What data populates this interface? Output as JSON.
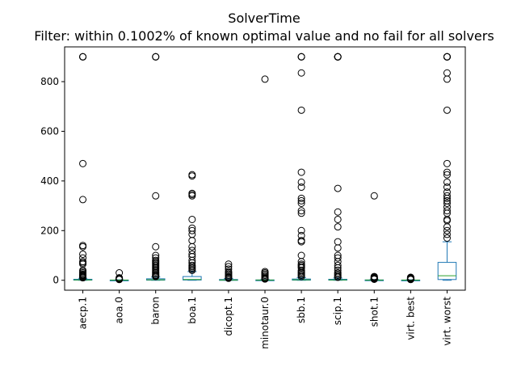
{
  "chart_data": {
    "type": "box",
    "title": "SolverTime",
    "subtitle": "Filter: within 0.1002% of known optimal value and no fail for all solvers",
    "xlabel": "",
    "ylabel": "",
    "ylim": [
      -40,
      940
    ],
    "yticks": [
      0,
      200,
      400,
      600,
      800
    ],
    "grid": false,
    "legend": "none",
    "colors": {
      "box": "#1f77b4",
      "median": "#2ca02c",
      "whisker": "#1f77b4",
      "outlier": "#000000"
    },
    "categories": [
      "aecp.1",
      "aoa.0",
      "baron",
      "boa.1",
      "dicopt.1",
      "minotaur.0",
      "sbb.1",
      "scip.1",
      "shot.1",
      "virt. best",
      "virt. worst"
    ],
    "boxes": [
      {
        "name": "aecp.1",
        "q1": 0.5,
        "median": 1.5,
        "q3": 4,
        "whislo": 0,
        "whishi": 8,
        "fliers": [
          900,
          900,
          900,
          470,
          325,
          140,
          135,
          105,
          90,
          75,
          70,
          65,
          40,
          35,
          30,
          25,
          22,
          20,
          18,
          15,
          12,
          10
        ]
      },
      {
        "name": "aoa.0",
        "q1": 0.2,
        "median": 0.5,
        "q3": 1,
        "whislo": 0,
        "whishi": 2,
        "fliers": [
          30,
          10,
          8,
          6,
          5,
          4,
          3
        ]
      },
      {
        "name": "baron",
        "q1": 0.5,
        "median": 2,
        "q3": 6,
        "whislo": 0,
        "whishi": 13,
        "fliers": [
          900,
          900,
          900,
          340,
          135,
          100,
          90,
          80,
          75,
          70,
          65,
          60,
          55,
          50,
          45,
          40,
          35,
          30,
          25,
          20,
          18,
          15
        ]
      },
      {
        "name": "boa.1",
        "q1": 1,
        "median": 3,
        "q3": 15,
        "whislo": 0,
        "whishi": 35,
        "fliers": [
          425,
          420,
          350,
          345,
          340,
          245,
          210,
          200,
          185,
          160,
          135,
          120,
          105,
          95,
          80,
          70,
          60,
          55,
          50,
          45,
          40
        ]
      },
      {
        "name": "dicopt.1",
        "q1": 0.3,
        "median": 1,
        "q3": 3,
        "whislo": 0,
        "whishi": 7,
        "fliers": [
          65,
          55,
          45,
          35,
          30,
          25,
          20,
          15,
          12,
          10,
          8
        ]
      },
      {
        "name": "minotaur.0",
        "q1": 0.2,
        "median": 0.5,
        "q3": 1.5,
        "whislo": 0,
        "whishi": 3,
        "fliers": [
          810,
          35,
          30,
          25,
          20,
          15,
          10,
          8,
          6,
          5
        ]
      },
      {
        "name": "sbb.1",
        "q1": 0.5,
        "median": 2,
        "q3": 5,
        "whislo": 0,
        "whishi": 11,
        "fliers": [
          900,
          900,
          900,
          835,
          685,
          435,
          395,
          375,
          330,
          320,
          310,
          280,
          270,
          200,
          180,
          160,
          155,
          100,
          75,
          65,
          60,
          55,
          50,
          40,
          35,
          30,
          25,
          20,
          15
        ]
      },
      {
        "name": "scip.1",
        "q1": 0.5,
        "median": 1.5,
        "q3": 4,
        "whislo": 0,
        "whishi": 9,
        "fliers": [
          900,
          900,
          900,
          900,
          900,
          900,
          900,
          370,
          275,
          245,
          215,
          155,
          130,
          100,
          90,
          75,
          60,
          50,
          40,
          30,
          25,
          20,
          15,
          12
        ]
      },
      {
        "name": "shot.1",
        "q1": 0.2,
        "median": 0.5,
        "q3": 1.5,
        "whislo": 0,
        "whishi": 3,
        "fliers": [
          340,
          15,
          12,
          10,
          8,
          6,
          5,
          4
        ]
      },
      {
        "name": "virt. best",
        "q1": 0.2,
        "median": 0.5,
        "q3": 1,
        "whislo": 0,
        "whishi": 2,
        "fliers": [
          12,
          10,
          8,
          6,
          5,
          4,
          3
        ]
      },
      {
        "name": "virt. worst",
        "q1": 3,
        "median": 18,
        "q3": 72,
        "whislo": 0,
        "whishi": 155,
        "fliers": [
          900,
          900,
          900,
          900,
          900,
          835,
          810,
          685,
          470,
          435,
          425,
          395,
          375,
          355,
          340,
          330,
          320,
          310,
          295,
          280,
          270,
          245,
          240,
          215,
          200,
          185,
          170
        ]
      }
    ]
  }
}
